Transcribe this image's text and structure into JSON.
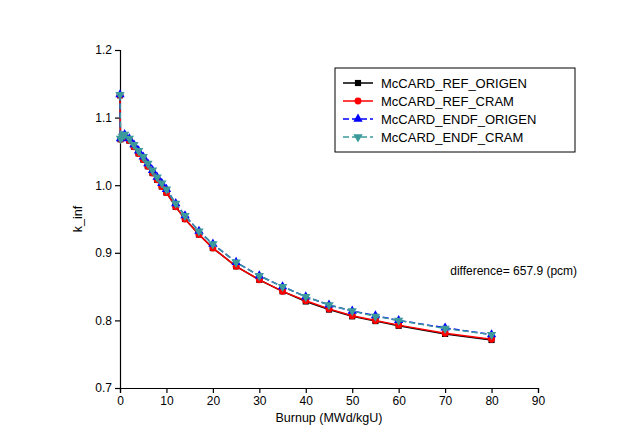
{
  "chart_data": {
    "type": "line",
    "x_label": "Burnup (MWd/kgU)",
    "y_label": "k_inf",
    "annotations": [
      "difference= 657.9 (pcm)"
    ],
    "x": [
      0,
      0.1,
      0.5,
      1,
      2,
      3,
      4,
      5,
      6,
      7,
      8,
      9,
      10,
      12,
      14,
      17,
      20,
      25,
      30,
      35,
      40,
      45,
      50,
      55,
      60,
      70,
      80
    ],
    "series": [
      {
        "name": "McCARD_REF_ORIGEN",
        "color": "#000000",
        "marker": "square",
        "line_style": "solid",
        "values": [
          1.133,
          1.068,
          1.07,
          1.072,
          1.066,
          1.057,
          1.047,
          1.038,
          1.028,
          1.018,
          1.008,
          0.998,
          0.989,
          0.968,
          0.95,
          0.927,
          0.907,
          0.88,
          0.86,
          0.843,
          0.828,
          0.816,
          0.806,
          0.799,
          0.792,
          0.78,
          0.771
        ]
      },
      {
        "name": "McCARD_REF_CRAM",
        "color": "#ff0000",
        "marker": "circle",
        "line_style": "solid",
        "values": [
          1.133,
          1.068,
          1.07,
          1.072,
          1.066,
          1.057,
          1.047,
          1.038,
          1.028,
          1.018,
          1.008,
          0.998,
          0.989,
          0.968,
          0.95,
          0.927,
          0.907,
          0.88,
          0.86,
          0.843,
          0.829,
          0.817,
          0.807,
          0.8,
          0.793,
          0.781,
          0.772
        ]
      },
      {
        "name": "McCARD_ENDF_ORIGEN",
        "color": "#0000ff",
        "marker": "triangle-up",
        "line_style": "dash",
        "values": [
          1.134,
          1.069,
          1.072,
          1.075,
          1.069,
          1.06,
          1.051,
          1.042,
          1.032,
          1.022,
          1.012,
          1.003,
          0.994,
          0.973,
          0.955,
          0.932,
          0.913,
          0.886,
          0.866,
          0.85,
          0.835,
          0.823,
          0.814,
          0.807,
          0.8,
          0.789,
          0.779
        ]
      },
      {
        "name": "McCARD_ENDF_CRAM",
        "color": "#3d9a9a",
        "marker": "triangle-down",
        "line_style": "dash",
        "values": [
          1.134,
          1.069,
          1.072,
          1.075,
          1.069,
          1.06,
          1.051,
          1.042,
          1.032,
          1.022,
          1.012,
          1.003,
          0.994,
          0.973,
          0.955,
          0.932,
          0.913,
          0.886,
          0.866,
          0.85,
          0.835,
          0.823,
          0.814,
          0.806,
          0.8,
          0.788,
          0.779
        ]
      }
    ],
    "xlim": [
      0,
      90
    ],
    "xticks": [
      0,
      10,
      20,
      30,
      40,
      50,
      60,
      70,
      80,
      90
    ],
    "ylim": [
      0.7,
      1.2
    ],
    "yticks": [
      0.7,
      0.8,
      0.9,
      {
        "value": 1.0,
        "label": "1.0"
      },
      1.1,
      1.2
    ],
    "legend": "upper right",
    "grid": false
  }
}
